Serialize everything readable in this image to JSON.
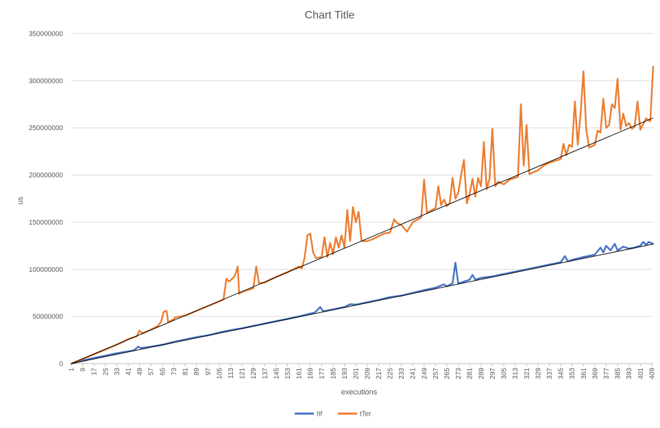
{
  "chart_data": {
    "type": "line",
    "title": "Chart Title",
    "xlabel": "executions",
    "ylabel": "us",
    "x_range": [
      1,
      410
    ],
    "ylim": [
      0,
      350000000
    ],
    "y_ticks": [
      0,
      50000000,
      100000000,
      150000000,
      200000000,
      250000000,
      300000000,
      350000000
    ],
    "y_tick_labels": [
      "0",
      "50000000",
      "100000000",
      "150000000",
      "200000000",
      "250000000",
      "300000000",
      "350000000"
    ],
    "x_tick_labels": [
      "1",
      "9",
      "17",
      "25",
      "33",
      "41",
      "49",
      "57",
      "65",
      "73",
      "81",
      "89",
      "97",
      "105",
      "113",
      "121",
      "129",
      "137",
      "145",
      "153",
      "161",
      "169",
      "177",
      "185",
      "193",
      "201",
      "209",
      "217",
      "225",
      "233",
      "241",
      "249",
      "257",
      "265",
      "273",
      "281",
      "289",
      "297",
      "305",
      "313",
      "321",
      "329",
      "337",
      "345",
      "353",
      "361",
      "369",
      "377",
      "385",
      "393",
      "401",
      "409"
    ],
    "grid": "horizontal",
    "legend_position": "bottom",
    "series": [
      {
        "name": "tIf",
        "color": "#4472c4",
        "trend_slope": 310000,
        "points": [
          [
            1,
            0
          ],
          [
            9,
            3500000
          ],
          [
            17,
            6000000
          ],
          [
            25,
            8500000
          ],
          [
            33,
            11000000
          ],
          [
            41,
            13000000
          ],
          [
            45,
            14000000
          ],
          [
            48,
            18000000
          ],
          [
            50,
            16500000
          ],
          [
            57,
            18000000
          ],
          [
            65,
            20000000
          ],
          [
            73,
            23000000
          ],
          [
            81,
            25500000
          ],
          [
            89,
            28000000
          ],
          [
            97,
            30000000
          ],
          [
            105,
            33000000
          ],
          [
            113,
            35500000
          ],
          [
            121,
            37500000
          ],
          [
            129,
            40000000
          ],
          [
            137,
            42500000
          ],
          [
            145,
            45000000
          ],
          [
            153,
            47500000
          ],
          [
            161,
            50000000
          ],
          [
            169,
            53000000
          ],
          [
            172,
            54000000
          ],
          [
            176,
            60000000
          ],
          [
            178,
            55500000
          ],
          [
            185,
            57500000
          ],
          [
            193,
            60000000
          ],
          [
            197,
            63000000
          ],
          [
            201,
            62500000
          ],
          [
            209,
            65000000
          ],
          [
            217,
            67500000
          ],
          [
            225,
            70500000
          ],
          [
            233,
            72000000
          ],
          [
            241,
            75000000
          ],
          [
            249,
            78000000
          ],
          [
            257,
            80500000
          ],
          [
            263,
            84000000
          ],
          [
            265,
            82000000
          ],
          [
            269,
            85000000
          ],
          [
            271,
            107000000
          ],
          [
            273,
            85000000
          ],
          [
            281,
            89000000
          ],
          [
            283,
            94000000
          ],
          [
            285,
            89000000
          ],
          [
            289,
            91000000
          ],
          [
            297,
            92500000
          ],
          [
            305,
            95000000
          ],
          [
            313,
            97500000
          ],
          [
            321,
            100000000
          ],
          [
            329,
            102500000
          ],
          [
            337,
            105000000
          ],
          [
            345,
            107500000
          ],
          [
            348,
            114000000
          ],
          [
            350,
            108500000
          ],
          [
            353,
            110000000
          ],
          [
            361,
            113000000
          ],
          [
            369,
            115500000
          ],
          [
            373,
            123000000
          ],
          [
            375,
            118000000
          ],
          [
            377,
            125000000
          ],
          [
            380,
            120000000
          ],
          [
            383,
            127000000
          ],
          [
            385,
            120000000
          ],
          [
            389,
            124000000
          ],
          [
            393,
            122000000
          ],
          [
            397,
            123000000
          ],
          [
            401,
            125000000
          ],
          [
            403,
            129000000
          ],
          [
            405,
            126000000
          ],
          [
            407,
            129000000
          ],
          [
            410,
            127000000
          ]
        ]
      },
      {
        "name": "tTer",
        "color": "#ed7d31",
        "trend_slope": 637000,
        "points": [
          [
            1,
            0
          ],
          [
            9,
            5000000
          ],
          [
            17,
            10000000
          ],
          [
            25,
            15000000
          ],
          [
            33,
            20000000
          ],
          [
            41,
            26000000
          ],
          [
            47,
            29000000
          ],
          [
            49,
            35000000
          ],
          [
            51,
            32000000
          ],
          [
            57,
            36000000
          ],
          [
            62,
            40000000
          ],
          [
            64,
            44000000
          ],
          [
            66,
            55000000
          ],
          [
            68,
            56000000
          ],
          [
            69,
            44000000
          ],
          [
            73,
            47000000
          ],
          [
            74,
            49000000
          ],
          [
            81,
            51000000
          ],
          [
            89,
            56000000
          ],
          [
            97,
            61000000
          ],
          [
            105,
            66000000
          ],
          [
            108,
            68000000
          ],
          [
            110,
            90000000
          ],
          [
            112,
            87000000
          ],
          [
            114,
            90000000
          ],
          [
            116,
            93000000
          ],
          [
            118,
            103000000
          ],
          [
            119,
            74000000
          ],
          [
            121,
            76000000
          ],
          [
            129,
            80000000
          ],
          [
            131,
            103000000
          ],
          [
            133,
            85000000
          ],
          [
            137,
            86000000
          ],
          [
            145,
            92000000
          ],
          [
            153,
            97000000
          ],
          [
            161,
            103000000
          ],
          [
            163,
            101000000
          ],
          [
            165,
            112000000
          ],
          [
            167,
            136000000
          ],
          [
            169,
            138000000
          ],
          [
            171,
            118000000
          ],
          [
            173,
            112000000
          ],
          [
            177,
            113000000
          ],
          [
            179,
            134000000
          ],
          [
            181,
            113000000
          ],
          [
            183,
            128000000
          ],
          [
            185,
            116000000
          ],
          [
            187,
            134000000
          ],
          [
            189,
            123000000
          ],
          [
            191,
            136000000
          ],
          [
            193,
            123000000
          ],
          [
            195,
            163000000
          ],
          [
            197,
            130000000
          ],
          [
            199,
            166000000
          ],
          [
            201,
            150000000
          ],
          [
            203,
            161000000
          ],
          [
            205,
            130000000
          ],
          [
            209,
            130000000
          ],
          [
            213,
            132000000
          ],
          [
            217,
            135000000
          ],
          [
            221,
            138000000
          ],
          [
            225,
            139000000
          ],
          [
            228,
            153000000
          ],
          [
            230,
            149000000
          ],
          [
            233,
            147000000
          ],
          [
            237,
            140000000
          ],
          [
            241,
            150000000
          ],
          [
            247,
            155000000
          ],
          [
            249,
            195000000
          ],
          [
            251,
            160000000
          ],
          [
            257,
            165000000
          ],
          [
            259,
            188000000
          ],
          [
            261,
            168000000
          ],
          [
            263,
            174000000
          ],
          [
            265,
            167000000
          ],
          [
            267,
            170000000
          ],
          [
            269,
            197000000
          ],
          [
            271,
            175000000
          ],
          [
            273,
            181000000
          ],
          [
            275,
            200000000
          ],
          [
            277,
            216000000
          ],
          [
            279,
            170000000
          ],
          [
            281,
            180000000
          ],
          [
            283,
            196000000
          ],
          [
            285,
            177000000
          ],
          [
            287,
            197000000
          ],
          [
            289,
            188000000
          ],
          [
            291,
            235000000
          ],
          [
            293,
            185000000
          ],
          [
            295,
            196000000
          ],
          [
            297,
            249000000
          ],
          [
            299,
            188000000
          ],
          [
            301,
            193000000
          ],
          [
            305,
            190000000
          ],
          [
            309,
            195000000
          ],
          [
            313,
            197000000
          ],
          [
            315,
            198000000
          ],
          [
            317,
            275000000
          ],
          [
            319,
            210000000
          ],
          [
            321,
            253000000
          ],
          [
            323,
            201000000
          ],
          [
            329,
            205000000
          ],
          [
            333,
            210000000
          ],
          [
            337,
            213000000
          ],
          [
            341,
            215000000
          ],
          [
            345,
            217000000
          ],
          [
            347,
            233000000
          ],
          [
            349,
            221000000
          ],
          [
            351,
            232000000
          ],
          [
            353,
            230000000
          ],
          [
            355,
            278000000
          ],
          [
            357,
            232000000
          ],
          [
            359,
            265000000
          ],
          [
            361,
            310000000
          ],
          [
            363,
            248000000
          ],
          [
            365,
            229000000
          ],
          [
            369,
            232000000
          ],
          [
            371,
            247000000
          ],
          [
            373,
            245000000
          ],
          [
            375,
            281000000
          ],
          [
            377,
            250000000
          ],
          [
            379,
            253000000
          ],
          [
            381,
            275000000
          ],
          [
            383,
            271000000
          ],
          [
            385,
            302000000
          ],
          [
            387,
            248000000
          ],
          [
            389,
            265000000
          ],
          [
            391,
            252000000
          ],
          [
            393,
            255000000
          ],
          [
            395,
            249000000
          ],
          [
            397,
            251000000
          ],
          [
            399,
            278000000
          ],
          [
            401,
            248000000
          ],
          [
            405,
            260000000
          ],
          [
            408,
            257000000
          ],
          [
            410,
            315000000
          ]
        ]
      }
    ]
  }
}
